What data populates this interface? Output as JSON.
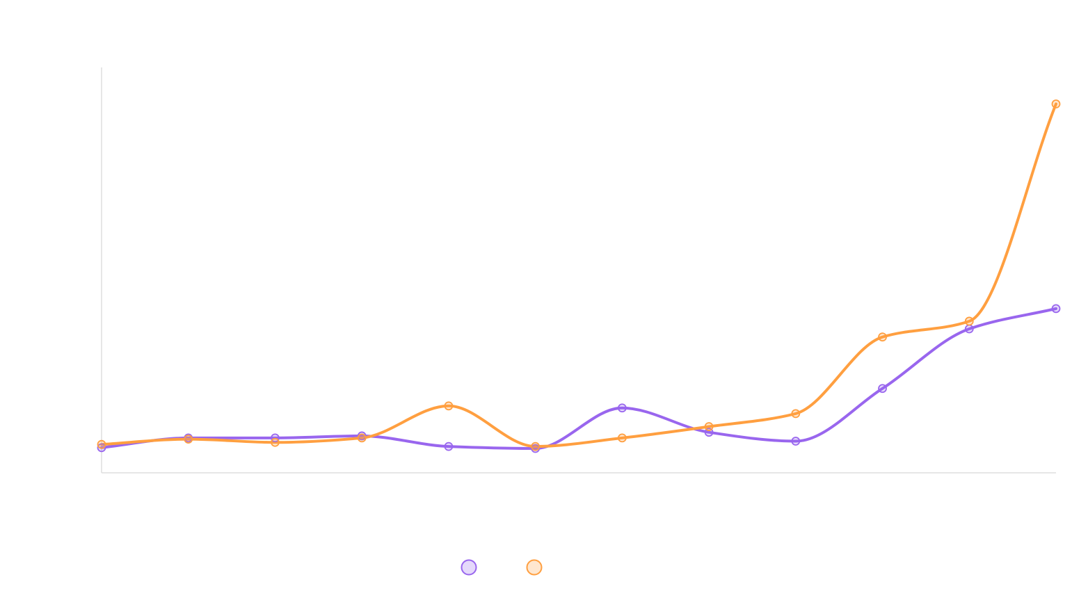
{
  "chart_data": {
    "type": "line",
    "title": "",
    "xlabel": "",
    "ylabel": "",
    "x": [
      1,
      2,
      3,
      4,
      5,
      6,
      7,
      8,
      9,
      10,
      11,
      12
    ],
    "ylim": [
      0,
      100
    ],
    "grid": false,
    "legend": "bottom-center",
    "series": [
      {
        "name": "",
        "color": "#9966ee",
        "values": [
          6.2,
          8.6,
          8.6,
          9.1,
          6.5,
          6.0,
          16.0,
          10.0,
          7.8,
          20.8,
          35.5,
          40.5
        ]
      },
      {
        "name": "",
        "color": "#ff9f40",
        "values": [
          7.0,
          8.3,
          7.5,
          8.6,
          16.5,
          6.5,
          8.6,
          11.4,
          14.6,
          33.5,
          37.4,
          91.0
        ]
      }
    ]
  }
}
